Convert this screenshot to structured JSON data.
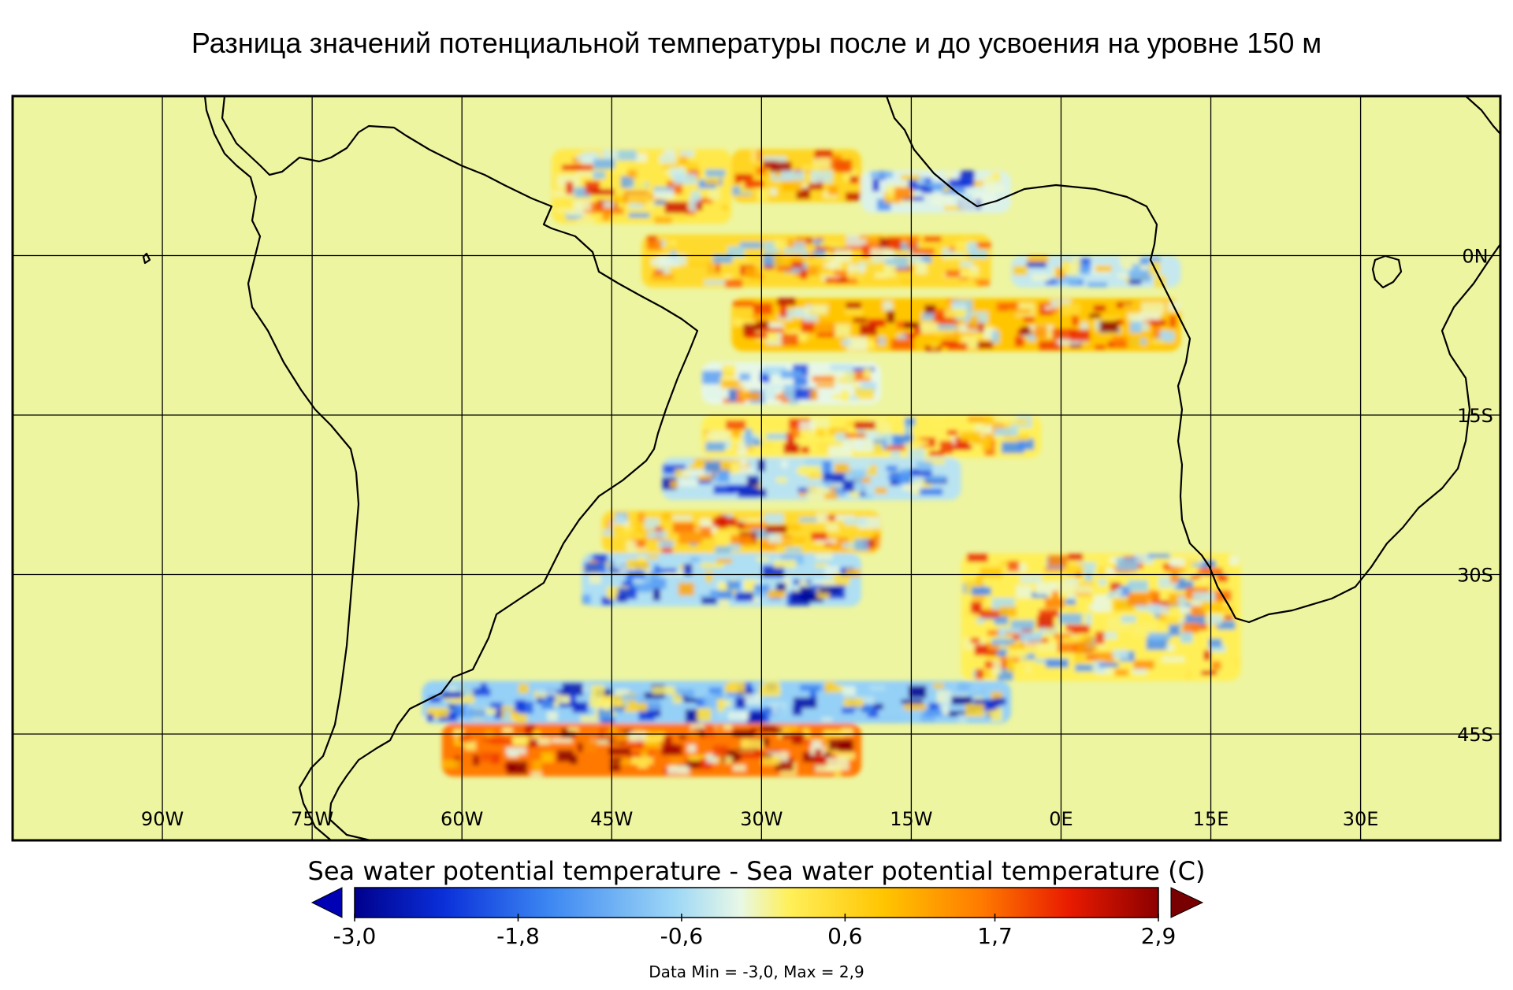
{
  "title": "Разница значений потенциальной температуры после и до усвоения на уровне 150 м",
  "map": {
    "lon_labels": [
      "90W",
      "75W",
      "60W",
      "45W",
      "30W",
      "15W",
      "0E",
      "15E",
      "30E"
    ],
    "lon_values": [
      -90,
      -75,
      -60,
      -45,
      -30,
      -15,
      0,
      15,
      30
    ],
    "lat_labels": [
      "0N",
      "15S",
      "30S",
      "45S"
    ],
    "lat_values": [
      0,
      -15,
      -30,
      -45
    ],
    "lon_range": [
      -105,
      44
    ],
    "lat_range": [
      -55,
      15
    ],
    "land_color": "#eef5a0",
    "coast_color": "#000000",
    "grid_color": "#000000"
  },
  "colorbar": {
    "title": "Sea water potential temperature - Sea water potential temperature (C)",
    "tick_labels": [
      "-3,0",
      "-1,8",
      "-0,6",
      "0,6",
      "1,7",
      "2,9"
    ],
    "tick_values": [
      -3.0,
      -1.8,
      -0.6,
      0.6,
      1.7,
      2.9
    ],
    "range": [
      -3.0,
      2.9
    ],
    "colors": [
      "#00008c",
      "#0a2fd9",
      "#3b86f2",
      "#9fd8f6",
      "#e8f8e6",
      "#fff05a",
      "#ffc400",
      "#ff7a00",
      "#e81a00",
      "#8c0000"
    ],
    "under_color": "#0000b4",
    "over_color": "#780000"
  },
  "data_range": "Data Min = -3,0, Max = 2,9",
  "chart_data": {
    "type": "heatmap",
    "title": "Разница значений потенциальной температуры после и до усвоения на уровне 150 м",
    "variable": "Sea water potential temperature - Sea water potential temperature (C)",
    "vmin": -3.0,
    "vmax": 2.9,
    "data_min": -3.0,
    "data_max": 2.9,
    "regions": [
      {
        "lon": [
          -51,
          -33
        ],
        "lat": [
          10,
          3
        ],
        "mean_value": 0.4
      },
      {
        "lon": [
          -33,
          -20
        ],
        "lat": [
          10,
          5
        ],
        "mean_value": 0.7
      },
      {
        "lon": [
          -20,
          -5
        ],
        "lat": [
          8,
          4
        ],
        "mean_value": -0.5
      },
      {
        "lon": [
          -42,
          -7
        ],
        "lat": [
          2,
          -3
        ],
        "mean_value": 0.6
      },
      {
        "lon": [
          -5,
          12
        ],
        "lat": [
          0,
          -3
        ],
        "mean_value": -0.7
      },
      {
        "lon": [
          -33,
          12
        ],
        "lat": [
          -4,
          -9
        ],
        "mean_value": 0.9
      },
      {
        "lon": [
          -36,
          -18
        ],
        "lat": [
          -10,
          -14
        ],
        "mean_value": -0.4
      },
      {
        "lon": [
          -36,
          -2
        ],
        "lat": [
          -15,
          -19
        ],
        "mean_value": 0.3
      },
      {
        "lon": [
          -40,
          -10
        ],
        "lat": [
          -19,
          -23
        ],
        "mean_value": -0.8
      },
      {
        "lon": [
          -46,
          -18
        ],
        "lat": [
          -24,
          -28
        ],
        "mean_value": 0.6
      },
      {
        "lon": [
          -48,
          -20
        ],
        "lat": [
          -28,
          -33
        ],
        "mean_value": -0.9
      },
      {
        "lon": [
          -10,
          18
        ],
        "lat": [
          -28,
          -40
        ],
        "mean_value": 0.3
      },
      {
        "lon": [
          -64,
          -5
        ],
        "lat": [
          -40,
          -44
        ],
        "mean_value": -1.1
      },
      {
        "lon": [
          -62,
          -20
        ],
        "lat": [
          -44,
          -49
        ],
        "mean_value": 1.6
      }
    ]
  }
}
